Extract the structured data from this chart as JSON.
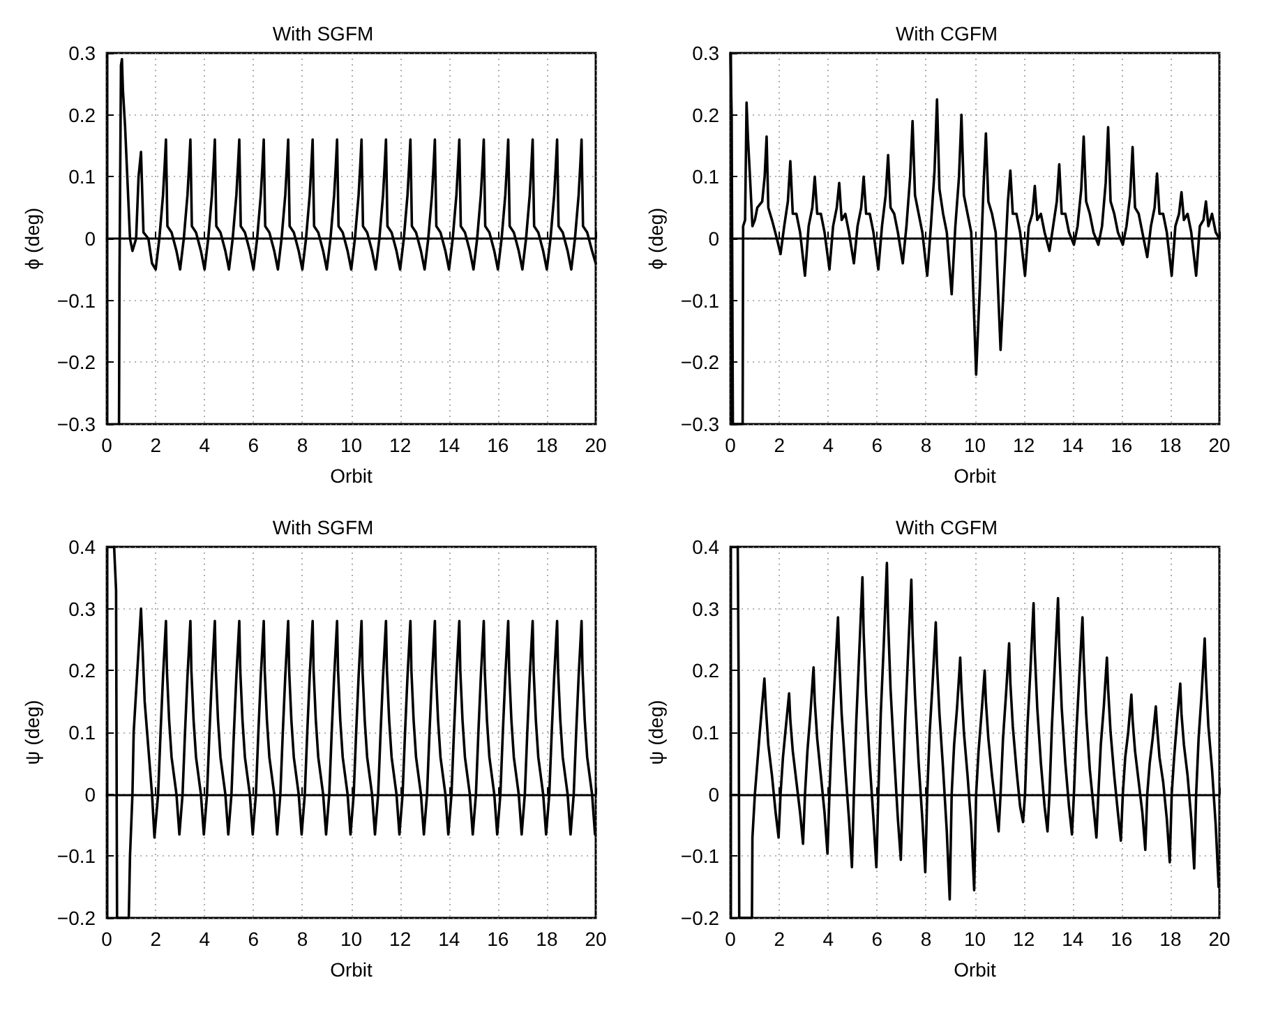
{
  "chart_data": [
    {
      "type": "line",
      "title": "With SGFM",
      "xlabel": "Orbit",
      "ylabel": "ϕ (deg)",
      "color": "#000000",
      "grid": true,
      "xlim": [
        0,
        20
      ],
      "xticks": [
        0,
        2,
        4,
        6,
        8,
        10,
        12,
        14,
        16,
        18,
        20
      ],
      "ylim": [
        -0.3,
        0.3
      ],
      "yticks": [
        -0.3,
        -0.2,
        -0.1,
        0,
        0.1,
        0.2,
        0.3
      ],
      "x": [
        0.5,
        0.52,
        0.58,
        0.62,
        0.66,
        0.75,
        0.85,
        0.95,
        1.05,
        1.2,
        1.3,
        1.4,
        1.5,
        1.7,
        1.85,
        2,
        2.15,
        2.3,
        2.37,
        2.42,
        2.48,
        2.65,
        2.85,
        3,
        3.15,
        3.3,
        3.37,
        3.42,
        3.48,
        3.65,
        3.85,
        4,
        4.15,
        4.3,
        4.37,
        4.42,
        4.48,
        4.65,
        4.85,
        5,
        5.15,
        5.3,
        5.37,
        5.42,
        5.48,
        5.65,
        5.85,
        6,
        6.15,
        6.3,
        6.37,
        6.42,
        6.48,
        6.65,
        6.85,
        7,
        7.15,
        7.3,
        7.37,
        7.42,
        7.48,
        7.65,
        7.85,
        8,
        8.15,
        8.3,
        8.37,
        8.42,
        8.48,
        8.65,
        8.85,
        9,
        9.15,
        9.3,
        9.37,
        9.42,
        9.48,
        9.65,
        9.85,
        10,
        10.15,
        10.3,
        10.37,
        10.42,
        10.48,
        10.65,
        10.85,
        11,
        11.15,
        11.3,
        11.37,
        11.42,
        11.48,
        11.65,
        11.85,
        12,
        12.15,
        12.3,
        12.37,
        12.42,
        12.48,
        12.65,
        12.85,
        13,
        13.15,
        13.3,
        13.37,
        13.42,
        13.48,
        13.65,
        13.85,
        14,
        14.15,
        14.3,
        14.37,
        14.42,
        14.48,
        14.65,
        14.85,
        15,
        15.15,
        15.3,
        15.37,
        15.42,
        15.48,
        15.65,
        15.85,
        16,
        16.15,
        16.3,
        16.37,
        16.42,
        16.48,
        16.65,
        16.85,
        17,
        17.15,
        17.3,
        17.37,
        17.42,
        17.48,
        17.65,
        17.85,
        18,
        18.15,
        18.3,
        18.37,
        18.42,
        18.48,
        18.65,
        18.85,
        19,
        19.15,
        19.3,
        19.37,
        19.42,
        19.48,
        19.65,
        19.85,
        20
      ],
      "values": [
        -0.3,
        -0.06,
        0.28,
        0.29,
        0.24,
        0.18,
        0.09,
        0,
        -0.02,
        0,
        0.1,
        0.14,
        0.01,
        0,
        -0.04,
        -0.05,
        0,
        0.07,
        0.12,
        0.16,
        0.02,
        0.01,
        -0.02,
        -0.05,
        0,
        0.07,
        0.12,
        0.16,
        0.02,
        0.01,
        -0.02,
        -0.05,
        0,
        0.07,
        0.12,
        0.16,
        0.02,
        0.01,
        -0.02,
        -0.05,
        0,
        0.07,
        0.12,
        0.16,
        0.02,
        0.01,
        -0.02,
        -0.05,
        0,
        0.07,
        0.12,
        0.16,
        0.02,
        0.01,
        -0.02,
        -0.05,
        0,
        0.07,
        0.12,
        0.16,
        0.02,
        0.01,
        -0.02,
        -0.05,
        0,
        0.07,
        0.12,
        0.16,
        0.02,
        0.01,
        -0.02,
        -0.05,
        0,
        0.07,
        0.12,
        0.16,
        0.02,
        0.01,
        -0.02,
        -0.05,
        0,
        0.07,
        0.12,
        0.16,
        0.02,
        0.01,
        -0.02,
        -0.05,
        0,
        0.07,
        0.12,
        0.16,
        0.02,
        0.01,
        -0.02,
        -0.05,
        0,
        0.07,
        0.12,
        0.16,
        0.02,
        0.01,
        -0.02,
        -0.05,
        0,
        0.07,
        0.12,
        0.16,
        0.02,
        0.01,
        -0.02,
        -0.05,
        0,
        0.07,
        0.12,
        0.16,
        0.02,
        0.01,
        -0.02,
        -0.05,
        0,
        0.07,
        0.12,
        0.16,
        0.02,
        0.01,
        -0.02,
        -0.05,
        0,
        0.07,
        0.12,
        0.16,
        0.02,
        0.01,
        -0.02,
        -0.05,
        0,
        0.07,
        0.12,
        0.16,
        0.02,
        0.01,
        -0.02,
        -0.05,
        0,
        0.07,
        0.12,
        0.16,
        0.02,
        0.01,
        -0.02,
        -0.05,
        0,
        0.07,
        0.12,
        0.16,
        0.02,
        0.01,
        -0.02,
        -0.04
      ]
    },
    {
      "type": "line",
      "title": "With CGFM",
      "xlabel": "Orbit",
      "ylabel": "ϕ (deg)",
      "color": "#000000",
      "grid": true,
      "xlim": [
        0,
        20
      ],
      "xticks": [
        0,
        2,
        4,
        6,
        8,
        10,
        12,
        14,
        16,
        18,
        20
      ],
      "ylim": [
        -0.3,
        0.3
      ],
      "yticks": [
        -0.3,
        -0.2,
        -0.1,
        0,
        0.1,
        0.2,
        0.3
      ],
      "x": [
        0,
        0.05,
        0.1,
        0.5,
        0.52,
        0.6,
        0.66,
        0.72,
        0.8,
        0.9,
        1,
        1.1,
        1.3,
        1.4,
        1.48,
        1.55,
        1.7,
        1.9,
        2.05,
        2.2,
        2.35,
        2.45,
        2.55,
        2.7,
        2.85,
        3.05,
        3.2,
        3.35,
        3.45,
        3.55,
        3.7,
        3.85,
        4.05,
        4.2,
        4.35,
        4.45,
        4.55,
        4.7,
        4.85,
        5.05,
        5.2,
        5.35,
        5.45,
        5.55,
        5.7,
        5.85,
        6.05,
        6.2,
        6.35,
        6.45,
        6.55,
        6.7,
        6.85,
        7.05,
        7.2,
        7.35,
        7.45,
        7.55,
        7.7,
        7.85,
        8.05,
        8.2,
        8.35,
        8.45,
        8.55,
        8.7,
        8.85,
        9.05,
        9.2,
        9.35,
        9.45,
        9.55,
        9.7,
        9.85,
        10.05,
        10.2,
        10.35,
        10.45,
        10.55,
        10.7,
        10.85,
        11.05,
        11.2,
        11.35,
        11.45,
        11.55,
        11.7,
        11.85,
        12.05,
        12.2,
        12.35,
        12.45,
        12.55,
        12.7,
        12.85,
        13.05,
        13.2,
        13.35,
        13.45,
        13.55,
        13.7,
        13.85,
        14.05,
        14.2,
        14.35,
        14.45,
        14.55,
        14.7,
        14.85,
        15.05,
        15.2,
        15.35,
        15.45,
        15.55,
        15.7,
        15.85,
        16.05,
        16.2,
        16.35,
        16.45,
        16.55,
        16.7,
        16.85,
        17.05,
        17.2,
        17.35,
        17.45,
        17.55,
        17.7,
        17.85,
        18.05,
        18.2,
        18.35,
        18.45,
        18.55,
        18.7,
        18.85,
        19.05,
        19.2,
        19.35,
        19.45,
        19.55,
        19.7,
        19.85,
        20
      ],
      "values": [
        0.3,
        0.2,
        -0.3,
        -0.3,
        0.02,
        0.03,
        0.22,
        0.16,
        0.1,
        0.02,
        0.03,
        0.05,
        0.06,
        0.1,
        0.165,
        0.05,
        0.03,
        0,
        -0.025,
        0.02,
        0.06,
        0.125,
        0.04,
        0.04,
        0.01,
        -0.06,
        0.02,
        0.05,
        0.1,
        0.04,
        0.04,
        0.01,
        -0.05,
        0.02,
        0.05,
        0.09,
        0.03,
        0.04,
        0.01,
        -0.04,
        0.02,
        0.05,
        0.1,
        0.04,
        0.04,
        0.01,
        -0.05,
        0.02,
        0.07,
        0.135,
        0.05,
        0.04,
        0.01,
        -0.04,
        0.02,
        0.1,
        0.19,
        0.07,
        0.04,
        0.01,
        -0.06,
        0.02,
        0.11,
        0.225,
        0.08,
        0.04,
        0.01,
        -0.09,
        0.02,
        0.1,
        0.2,
        0.07,
        0.04,
        0.01,
        -0.22,
        -0.08,
        0.08,
        0.17,
        0.06,
        0.04,
        0.01,
        -0.18,
        -0.06,
        0.06,
        0.11,
        0.04,
        0.04,
        0.01,
        -0.06,
        0.02,
        0.04,
        0.085,
        0.03,
        0.04,
        0.01,
        -0.02,
        0.02,
        0.06,
        0.12,
        0.04,
        0.04,
        0.01,
        -0.01,
        0.02,
        0.08,
        0.165,
        0.06,
        0.04,
        0.01,
        -0.01,
        0.02,
        0.09,
        0.18,
        0.06,
        0.04,
        0.01,
        -0.01,
        0.02,
        0.07,
        0.148,
        0.05,
        0.04,
        0.01,
        -0.03,
        0.02,
        0.05,
        0.105,
        0.04,
        0.04,
        0.01,
        -0.06,
        0.02,
        0.04,
        0.075,
        0.03,
        0.04,
        0.01,
        -0.06,
        0.02,
        0.03,
        0.06,
        0.02,
        0.04,
        0.01,
        0
      ]
    },
    {
      "type": "line",
      "title": "With SGFM",
      "xlabel": "Orbit",
      "ylabel": "ψ (deg)",
      "color": "#000000",
      "grid": true,
      "xlim": [
        0,
        20
      ],
      "xticks": [
        0,
        2,
        4,
        6,
        8,
        10,
        12,
        14,
        16,
        18,
        20
      ],
      "ylim": [
        -0.2,
        0.4
      ],
      "yticks": [
        -0.2,
        -0.1,
        0,
        0.1,
        0.2,
        0.3,
        0.4
      ],
      "x": [
        0.3,
        0.38,
        0.42,
        0.9,
        0.95,
        1.05,
        1.1,
        1.25,
        1.4,
        1.45,
        1.55,
        1.65,
        1.75,
        1.85,
        1.95,
        2.1,
        2.2,
        2.3,
        2.42,
        2.46,
        2.55,
        2.65,
        2.85,
        2.97,
        3.1,
        3.2,
        3.3,
        3.42,
        3.46,
        3.55,
        3.65,
        3.85,
        3.97,
        4.1,
        4.2,
        4.3,
        4.42,
        4.46,
        4.55,
        4.65,
        4.85,
        4.97,
        5.1,
        5.2,
        5.3,
        5.42,
        5.46,
        5.55,
        5.65,
        5.85,
        5.97,
        6.1,
        6.2,
        6.3,
        6.42,
        6.46,
        6.55,
        6.65,
        6.85,
        6.97,
        7.1,
        7.2,
        7.3,
        7.42,
        7.46,
        7.55,
        7.65,
        7.85,
        7.97,
        8.1,
        8.2,
        8.3,
        8.42,
        8.46,
        8.55,
        8.65,
        8.85,
        8.97,
        9.1,
        9.2,
        9.3,
        9.42,
        9.46,
        9.55,
        9.65,
        9.85,
        9.97,
        10.1,
        10.2,
        10.3,
        10.42,
        10.46,
        10.55,
        10.65,
        10.85,
        10.97,
        11.1,
        11.2,
        11.3,
        11.42,
        11.46,
        11.55,
        11.65,
        11.85,
        11.97,
        12.1,
        12.2,
        12.3,
        12.42,
        12.46,
        12.55,
        12.65,
        12.85,
        12.97,
        13.1,
        13.2,
        13.3,
        13.42,
        13.46,
        13.55,
        13.65,
        13.85,
        13.97,
        14.1,
        14.2,
        14.3,
        14.42,
        14.46,
        14.55,
        14.65,
        14.85,
        14.97,
        15.1,
        15.2,
        15.3,
        15.42,
        15.46,
        15.55,
        15.65,
        15.85,
        15.97,
        16.1,
        16.2,
        16.3,
        16.42,
        16.46,
        16.55,
        16.65,
        16.85,
        16.97,
        17.1,
        17.2,
        17.3,
        17.42,
        17.46,
        17.55,
        17.65,
        17.85,
        17.97,
        18.1,
        18.2,
        18.3,
        18.42,
        18.46,
        18.55,
        18.65,
        18.85,
        18.97,
        19.1,
        19.2,
        19.3,
        19.42,
        19.46,
        19.55,
        19.65,
        19.85,
        19.97
      ],
      "values": [
        0.4,
        0.33,
        -0.2,
        -0.2,
        -0.1,
        0,
        0.1,
        0.2,
        0.3,
        0.25,
        0.15,
        0.1,
        0.05,
        0,
        -0.07,
        0,
        0.1,
        0.19,
        0.28,
        0.2,
        0.12,
        0.06,
        0,
        -0.065,
        0,
        0.1,
        0.19,
        0.28,
        0.2,
        0.12,
        0.06,
        0,
        -0.065,
        0,
        0.1,
        0.19,
        0.28,
        0.2,
        0.12,
        0.06,
        0,
        -0.065,
        0,
        0.1,
        0.19,
        0.28,
        0.2,
        0.12,
        0.06,
        0,
        -0.065,
        0,
        0.1,
        0.19,
        0.28,
        0.2,
        0.12,
        0.06,
        0,
        -0.065,
        0,
        0.1,
        0.19,
        0.28,
        0.2,
        0.12,
        0.06,
        0,
        -0.065,
        0,
        0.1,
        0.19,
        0.28,
        0.2,
        0.12,
        0.06,
        0,
        -0.065,
        0,
        0.1,
        0.19,
        0.28,
        0.2,
        0.12,
        0.06,
        0,
        -0.065,
        0,
        0.1,
        0.19,
        0.28,
        0.2,
        0.12,
        0.06,
        0,
        -0.065,
        0,
        0.1,
        0.19,
        0.28,
        0.2,
        0.12,
        0.06,
        0,
        -0.065,
        0,
        0.1,
        0.19,
        0.28,
        0.2,
        0.12,
        0.06,
        0,
        -0.065,
        0,
        0.1,
        0.19,
        0.28,
        0.2,
        0.12,
        0.06,
        0,
        -0.065,
        0,
        0.1,
        0.19,
        0.28,
        0.2,
        0.12,
        0.06,
        0,
        -0.065,
        0,
        0.1,
        0.19,
        0.28,
        0.2,
        0.12,
        0.06,
        0,
        -0.065,
        0,
        0.1,
        0.19,
        0.28,
        0.2,
        0.12,
        0.06,
        0,
        -0.065,
        0,
        0.1,
        0.19,
        0.28,
        0.2,
        0.12,
        0.06,
        0,
        -0.065,
        0,
        0.1,
        0.19,
        0.28,
        0.2,
        0.12,
        0.06,
        0,
        -0.065,
        0,
        0.1,
        0.19,
        0.28,
        0.2,
        0.12,
        0.06,
        0,
        -0.065
      ]
    },
    {
      "type": "line",
      "title": "With CGFM",
      "xlabel": "Orbit",
      "ylabel": "ψ (deg)",
      "color": "#000000",
      "grid": true,
      "xlim": [
        0,
        20
      ],
      "xticks": [
        0,
        2,
        4,
        6,
        8,
        10,
        12,
        14,
        16,
        18,
        20
      ],
      "ylim": [
        -0.2,
        0.4
      ],
      "yticks": [
        -0.2,
        -0.1,
        0,
        0.1,
        0.2,
        0.3,
        0.4
      ],
      "x": [
        0.3,
        0.34,
        0.36,
        0.88,
        0.9,
        1,
        1.1,
        1.2,
        1.39,
        1.45,
        1.55,
        1.7,
        1.85,
        1.97,
        2.05,
        2.15,
        2.27,
        2.4,
        2.45,
        2.55,
        2.7,
        2.85,
        2.97,
        3.05,
        3.15,
        3.27,
        3.4,
        3.45,
        3.55,
        3.7,
        3.85,
        3.97,
        4.05,
        4.15,
        4.27,
        4.4,
        4.45,
        4.55,
        4.7,
        4.85,
        4.97,
        5.05,
        5.15,
        5.27,
        5.4,
        5.45,
        5.55,
        5.7,
        5.85,
        5.97,
        6.05,
        6.15,
        6.27,
        6.4,
        6.45,
        6.55,
        6.7,
        6.85,
        6.97,
        7.05,
        7.15,
        7.27,
        7.4,
        7.45,
        7.55,
        7.7,
        7.85,
        7.97,
        8.05,
        8.15,
        8.27,
        8.4,
        8.45,
        8.55,
        8.7,
        8.85,
        8.97,
        9.05,
        9.15,
        9.27,
        9.4,
        9.45,
        9.55,
        9.7,
        9.85,
        9.97,
        10.05,
        10.15,
        10.27,
        10.4,
        10.45,
        10.55,
        10.7,
        10.85,
        10.97,
        11.05,
        11.15,
        11.27,
        11.4,
        11.45,
        11.55,
        11.7,
        11.85,
        11.97,
        12.05,
        12.15,
        12.27,
        12.4,
        12.45,
        12.55,
        12.7,
        12.85,
        12.97,
        13.05,
        13.15,
        13.27,
        13.4,
        13.45,
        13.55,
        13.7,
        13.85,
        13.97,
        14.05,
        14.15,
        14.27,
        14.4,
        14.45,
        14.55,
        14.7,
        14.85,
        14.97,
        15.05,
        15.15,
        15.27,
        15.4,
        15.45,
        15.55,
        15.7,
        15.85,
        15.97,
        16.05,
        16.15,
        16.27,
        16.4,
        16.45,
        16.55,
        16.7,
        16.85,
        16.97,
        17.05,
        17.15,
        17.27,
        17.4,
        17.45,
        17.55,
        17.7,
        17.85,
        17.97,
        18.05,
        18.15,
        18.27,
        18.4,
        18.45,
        18.55,
        18.7,
        18.85,
        18.97,
        19.05,
        19.15,
        19.27,
        19.4,
        19.45,
        19.55,
        19.7,
        19.85,
        19.97
      ],
      "values": [
        0.4,
        0.16,
        -0.2,
        -0.2,
        -0.07,
        0,
        0.05,
        0.1,
        0.187,
        0.14,
        0.08,
        0.03,
        -0.03,
        -0.07,
        0,
        0.06,
        0.11,
        0.163,
        0.12,
        0.07,
        0.02,
        -0.03,
        -0.08,
        0,
        0.07,
        0.13,
        0.205,
        0.15,
        0.09,
        0.03,
        -0.03,
        -0.096,
        0,
        0.1,
        0.19,
        0.286,
        0.22,
        0.13,
        0.04,
        -0.04,
        -0.118,
        0,
        0.12,
        0.23,
        0.351,
        0.26,
        0.16,
        0.05,
        -0.04,
        -0.118,
        0,
        0.13,
        0.24,
        0.374,
        0.28,
        0.17,
        0.06,
        -0.04,
        -0.106,
        0,
        0.12,
        0.23,
        0.347,
        0.26,
        0.16,
        0.05,
        -0.04,
        -0.126,
        0,
        0.1,
        0.18,
        0.278,
        0.21,
        0.13,
        0.04,
        -0.06,
        -0.17,
        0,
        0.08,
        0.14,
        0.221,
        0.17,
        0.1,
        0.03,
        -0.05,
        -0.155,
        0,
        0.07,
        0.13,
        0.2,
        0.15,
        0.09,
        0.03,
        -0.02,
        -0.06,
        0,
        0.09,
        0.16,
        0.244,
        0.18,
        0.11,
        0.04,
        -0.02,
        -0.045,
        0,
        0.11,
        0.2,
        0.309,
        0.23,
        0.14,
        0.05,
        -0.02,
        -0.06,
        0,
        0.11,
        0.21,
        0.317,
        0.24,
        0.14,
        0.05,
        -0.02,
        -0.065,
        0,
        0.1,
        0.19,
        0.286,
        0.22,
        0.13,
        0.04,
        -0.02,
        -0.07,
        0,
        0.08,
        0.14,
        0.221,
        0.17,
        0.1,
        0.03,
        -0.03,
        -0.075,
        0,
        0.06,
        0.1,
        0.161,
        0.12,
        0.07,
        0.02,
        -0.03,
        -0.09,
        0,
        0.05,
        0.09,
        0.142,
        0.11,
        0.06,
        0.02,
        -0.04,
        -0.11,
        0,
        0.06,
        0.12,
        0.179,
        0.13,
        0.08,
        0.03,
        -0.04,
        -0.12,
        0,
        0.09,
        0.16,
        0.252,
        0.19,
        0.11,
        0.04,
        -0.05,
        -0.15
      ]
    }
  ]
}
